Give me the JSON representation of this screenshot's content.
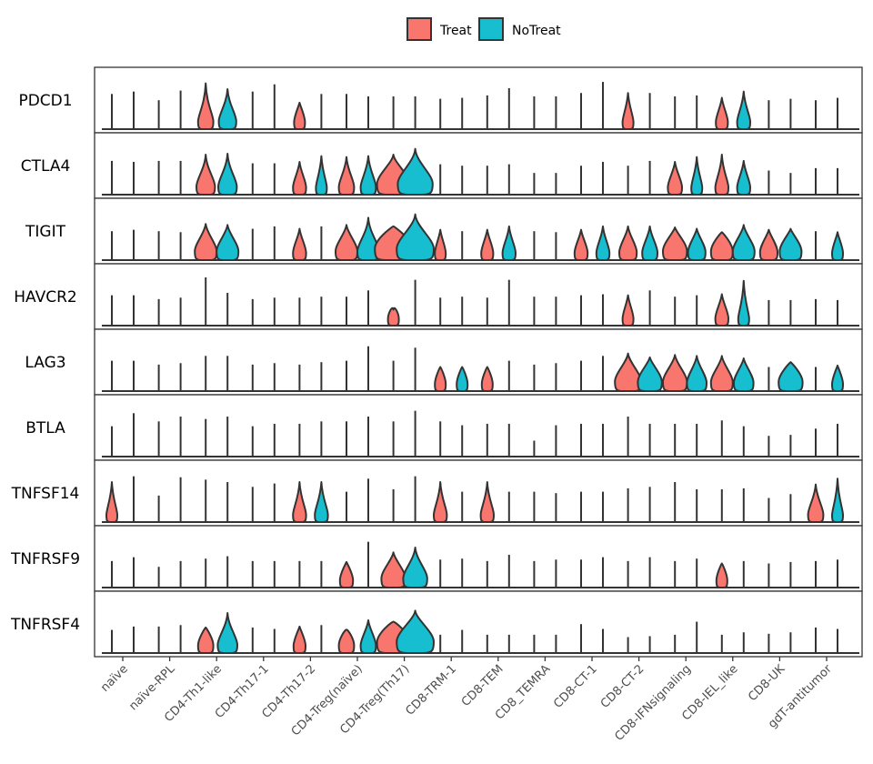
{
  "chart_data": {
    "type": "violin",
    "legend": {
      "position": "top",
      "entries": [
        {
          "name": "Treat",
          "color": "#F8766D"
        },
        {
          "name": "NoTreat",
          "color": "#17BECF"
        }
      ]
    },
    "categories": [
      "naïve",
      "naïve-RPL",
      "CD4-Th1-like",
      "CD4-Th17-1",
      "CD4-Th17-2",
      "CD4-Treg(naïve)",
      "CD4-Treg(Th17)",
      "CD8-TRM-1",
      "CD8-TEM",
      "CD8_TEMRA",
      "CD8-CT-1",
      "CD8-CT-2",
      "CD8-IFNsignaling",
      "CD8-IEL_like",
      "CD8-UK",
      "gdT-antitumor"
    ],
    "genes": [
      "PDCD1",
      "CTLA4",
      "TIGIT",
      "HAVCR2",
      "LAG3",
      "BTLA",
      "TNFSF14",
      "TNFRSF9",
      "TNFRSF4"
    ],
    "violins": {
      "PDCD1": [
        [
          0.73,
          0,
          0.78,
          0
        ],
        [
          0.6,
          0,
          0.8,
          0
        ],
        [
          0.95,
          0.7,
          0.83,
          0.8
        ],
        [
          0.78,
          0,
          0.93,
          0
        ],
        [
          0.55,
          0.5,
          0.73,
          0
        ],
        [
          0.73,
          0,
          0.68,
          0
        ],
        [
          0.68,
          0,
          0.68,
          0
        ],
        [
          0.63,
          0,
          0.65,
          0
        ],
        [
          0.7,
          0,
          0.85,
          0
        ],
        [
          0.68,
          0,
          0.68,
          0
        ],
        [
          0.75,
          0,
          0.98,
          0
        ],
        [
          0.75,
          0.5,
          0.75,
          0
        ],
        [
          0.68,
          0,
          0.7,
          0
        ],
        [
          0.65,
          0.55,
          0.78,
          0.6
        ],
        [
          0.6,
          0,
          0.63,
          0
        ],
        [
          0.6,
          0,
          0.65,
          0
        ]
      ],
      "CTLA4": [
        [
          0.7,
          0,
          0.68,
          0
        ],
        [
          0.7,
          0,
          0.7,
          0
        ],
        [
          0.83,
          0.85,
          0.85,
          0.85
        ],
        [
          0.65,
          0,
          0.65,
          0
        ],
        [
          0.68,
          0.6,
          0.8,
          0.5
        ],
        [
          0.78,
          0.7,
          0.8,
          0.7
        ],
        [
          0.83,
          1.5,
          0.95,
          1.6
        ],
        [
          0.63,
          0,
          0.6,
          0
        ],
        [
          0.6,
          0,
          0.63,
          0
        ],
        [
          0.45,
          0,
          0.45,
          0
        ],
        [
          0.6,
          0,
          0.68,
          0
        ],
        [
          0.6,
          0,
          0.7,
          0
        ],
        [
          0.68,
          0.65,
          0.78,
          0.5
        ],
        [
          0.83,
          0.6,
          0.7,
          0.6
        ],
        [
          0.5,
          0,
          0.45,
          0
        ],
        [
          0.55,
          0,
          0.55,
          0
        ]
      ],
      "TIGIT": [
        [
          0.6,
          0,
          0.63,
          0
        ],
        [
          0.6,
          0,
          0.58,
          0
        ],
        [
          0.75,
          1.0,
          0.73,
          1.0
        ],
        [
          0.65,
          0,
          0.7,
          0
        ],
        [
          0.65,
          0.6,
          0.7,
          0
        ],
        [
          0.73,
          1.0,
          0.88,
          1.0
        ],
        [
          0.7,
          1.7,
          0.95,
          1.7
        ],
        [
          0.63,
          0.5,
          0.6,
          0
        ],
        [
          0.63,
          0.55,
          0.7,
          0.6
        ],
        [
          0.6,
          0,
          0.58,
          0
        ],
        [
          0.63,
          0.6,
          0.7,
          0.6
        ],
        [
          0.7,
          0.8,
          0.7,
          0.7
        ],
        [
          0.68,
          1.1,
          0.65,
          0.8
        ],
        [
          0.58,
          1.0,
          0.73,
          1.0
        ],
        [
          0.63,
          0.8,
          0.65,
          1.0
        ],
        [
          0.6,
          0,
          0.58,
          0.5
        ]
      ],
      "HAVCR2": [
        [
          0.63,
          0,
          0.63,
          0
        ],
        [
          0.55,
          0,
          0.58,
          0
        ],
        [
          1.0,
          0,
          0.68,
          0
        ],
        [
          0.55,
          0,
          0.58,
          0
        ],
        [
          0.58,
          0,
          0.6,
          0
        ],
        [
          0.6,
          0,
          0.73,
          0
        ],
        [
          0.33,
          0.5,
          0.95,
          0
        ],
        [
          0.58,
          0,
          0.6,
          0
        ],
        [
          0.58,
          0,
          0.95,
          0
        ],
        [
          0.6,
          0,
          0.6,
          0
        ],
        [
          0.63,
          0,
          0.65,
          0
        ],
        [
          0.63,
          0.5,
          0.73,
          0
        ],
        [
          0.6,
          0,
          0.63,
          0
        ],
        [
          0.65,
          0.6,
          0.93,
          0.5
        ],
        [
          0.53,
          0,
          0.53,
          0
        ],
        [
          0.55,
          0,
          0.53,
          0
        ]
      ],
      "LAG3": [
        [
          0.63,
          0,
          0.63,
          0
        ],
        [
          0.55,
          0,
          0.58,
          0
        ],
        [
          0.73,
          0,
          0.73,
          0
        ],
        [
          0.55,
          0,
          0.58,
          0
        ],
        [
          0.55,
          0,
          0.6,
          0
        ],
        [
          0.63,
          0,
          0.93,
          0
        ],
        [
          0.63,
          0,
          0.9,
          0
        ],
        [
          0.5,
          0.5,
          0.5,
          0.5
        ],
        [
          0.5,
          0.5,
          0.63,
          0
        ],
        [
          0.55,
          0,
          0.58,
          0
        ],
        [
          0.63,
          0,
          0.73,
          0
        ],
        [
          0.78,
          1.2,
          0.7,
          1.1
        ],
        [
          0.75,
          1.1,
          0.73,
          0.9
        ],
        [
          0.73,
          1.0,
          0.68,
          0.9
        ],
        [
          0.5,
          0,
          0.6,
          1.1
        ],
        [
          0.5,
          0,
          0.53,
          0.5
        ]
      ],
      "BTLA": [
        [
          0.63,
          0,
          0.9,
          0
        ],
        [
          0.73,
          0,
          0.83,
          0
        ],
        [
          0.78,
          0,
          0.83,
          0
        ],
        [
          0.63,
          0,
          0.68,
          0
        ],
        [
          0.68,
          0,
          0.73,
          0
        ],
        [
          0.73,
          0,
          0.83,
          0
        ],
        [
          0.73,
          0,
          0.95,
          0
        ],
        [
          0.73,
          0,
          0.65,
          0
        ],
        [
          0.68,
          0,
          0.68,
          0
        ],
        [
          0.33,
          0,
          0.65,
          0
        ],
        [
          0.68,
          0,
          0.68,
          0
        ],
        [
          0.83,
          0,
          0.68,
          0
        ],
        [
          0.68,
          0,
          0.68,
          0
        ],
        [
          0.75,
          0,
          0.63,
          0
        ],
        [
          0.43,
          0,
          0.45,
          0
        ],
        [
          0.58,
          0,
          0.68,
          0
        ]
      ],
      "TNFSF14": [
        [
          0.83,
          0.5,
          0.95,
          0
        ],
        [
          0.55,
          0,
          0.93,
          0
        ],
        [
          0.88,
          0,
          0.83,
          0
        ],
        [
          0.73,
          0,
          0.8,
          0
        ],
        [
          0.83,
          0.6,
          0.83,
          0.6
        ],
        [
          0.63,
          0,
          0.9,
          0
        ],
        [
          0.68,
          0,
          0.95,
          0
        ],
        [
          0.83,
          0.6,
          0.63,
          0
        ],
        [
          0.83,
          0.6,
          0.63,
          0
        ],
        [
          0.63,
          0,
          0.6,
          0
        ],
        [
          0.63,
          0,
          0.63,
          0
        ],
        [
          0.7,
          0,
          0.73,
          0
        ],
        [
          0.83,
          0,
          0.68,
          0
        ],
        [
          0.68,
          0,
          0.7,
          0
        ],
        [
          0.5,
          0,
          0.58,
          0
        ],
        [
          0.78,
          0.7,
          0.9,
          0.5
        ]
      ],
      "TNFRSF9": [
        [
          0.55,
          0,
          0.63,
          0
        ],
        [
          0.43,
          0,
          0.55,
          0
        ],
        [
          0.6,
          0,
          0.65,
          0
        ],
        [
          0.55,
          0,
          0.55,
          0
        ],
        [
          0.55,
          0,
          0.55,
          0
        ],
        [
          0.53,
          0.6,
          0.95,
          0
        ],
        [
          0.73,
          1.1,
          0.83,
          1.1
        ],
        [
          0.58,
          0,
          0.6,
          0
        ],
        [
          0.55,
          0,
          0.68,
          0
        ],
        [
          0.55,
          0,
          0.58,
          0
        ],
        [
          0.58,
          0,
          0.63,
          0
        ],
        [
          0.55,
          0,
          0.63,
          0
        ],
        [
          0.55,
          0,
          0.6,
          0
        ],
        [
          0.5,
          0.5,
          0.55,
          0
        ],
        [
          0.5,
          0,
          0.53,
          0
        ],
        [
          0.55,
          0,
          0.58,
          0
        ]
      ],
      "TNFRSF4": [
        [
          0.48,
          0,
          0.55,
          0
        ],
        [
          0.55,
          0,
          0.58,
          0
        ],
        [
          0.53,
          0.7,
          0.83,
          0.9
        ],
        [
          0.53,
          0,
          0.5,
          0
        ],
        [
          0.55,
          0.55,
          0.58,
          0
        ],
        [
          0.48,
          0.7,
          0.68,
          0.7
        ],
        [
          0.65,
          1.5,
          0.88,
          1.7
        ],
        [
          0.38,
          0,
          0.48,
          0
        ],
        [
          0.38,
          0,
          0.38,
          0
        ],
        [
          0.38,
          0,
          0.38,
          0
        ],
        [
          0.6,
          0,
          0.5,
          0
        ],
        [
          0.33,
          0,
          0.35,
          0
        ],
        [
          0.38,
          0,
          0.65,
          0
        ],
        [
          0.38,
          0,
          0.43,
          0
        ],
        [
          0.4,
          0,
          0.43,
          0
        ],
        [
          0.53,
          0,
          0.5,
          0
        ]
      ]
    }
  }
}
